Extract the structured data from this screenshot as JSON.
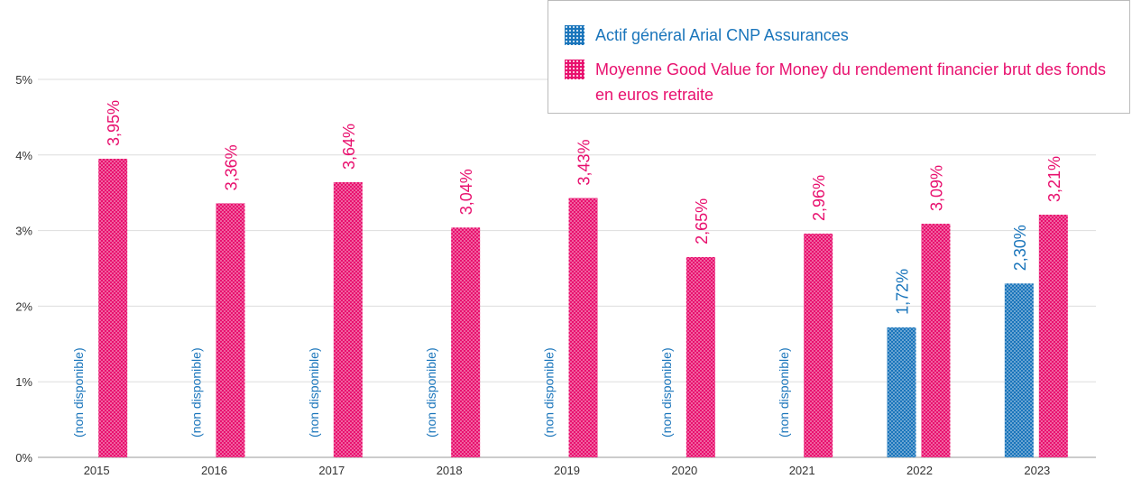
{
  "chart_data": {
    "type": "bar",
    "categories": [
      "2015",
      "2016",
      "2017",
      "2018",
      "2019",
      "2020",
      "2021",
      "2022",
      "2023"
    ],
    "series": [
      {
        "name": "Actif général Arial CNP Assurances",
        "color": "#1a75bb",
        "values": [
          null,
          null,
          null,
          null,
          null,
          null,
          null,
          1.72,
          2.3
        ],
        "value_labels": [
          "(non disponible)",
          "(non disponible)",
          "(non disponible)",
          "(non disponible)",
          "(non disponible)",
          "(non disponible)",
          "(non disponible)",
          "1,72%",
          "2,30%"
        ]
      },
      {
        "name": "Moyenne Good Value for Money du rendement financier brut des fonds en euros retraite",
        "color": "#e8106e",
        "values": [
          3.95,
          3.36,
          3.64,
          3.04,
          3.43,
          2.65,
          2.96,
          3.09,
          3.21
        ],
        "value_labels": [
          "3,95%",
          "3,36%",
          "3,64%",
          "3,04%",
          "3,43%",
          "2,65%",
          "2,96%",
          "3,09%",
          "3,21%"
        ]
      }
    ],
    "ylim": [
      0,
      5
    ],
    "yticks": [
      {
        "value": 0,
        "label": "0%"
      },
      {
        "value": 1,
        "label": "1%"
      },
      {
        "value": 2,
        "label": "2%"
      },
      {
        "value": 3,
        "label": "3%"
      },
      {
        "value": 4,
        "label": "4%"
      },
      {
        "value": 5,
        "label": "5%"
      }
    ],
    "grid": true,
    "legend": "top-right"
  }
}
